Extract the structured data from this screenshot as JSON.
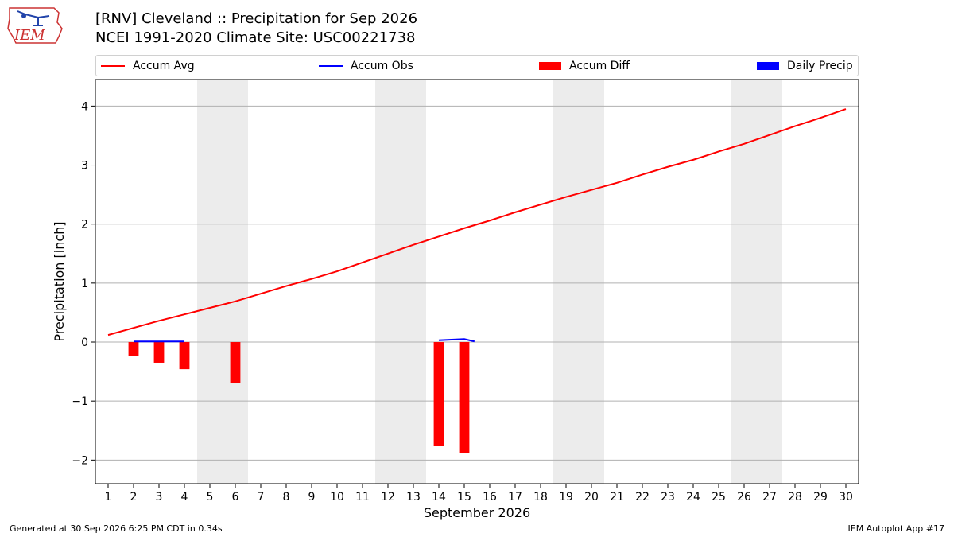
{
  "header": {
    "title_line1": "[RNV] Cleveland :: Precipitation for Sep 2026",
    "title_line2": "NCEI 1991-2020 Climate Site: USC00221738",
    "logo_text": "IEM"
  },
  "legend": {
    "placement": "top (above plot, single row)",
    "items": [
      {
        "label": "Accum Avg",
        "kind": "line",
        "color": "#ff0000"
      },
      {
        "label": "Accum Obs",
        "kind": "line",
        "color": "#0000ff"
      },
      {
        "label": "Accum Diff",
        "kind": "patch",
        "color": "#ff0000"
      },
      {
        "label": "Daily Precip",
        "kind": "patch",
        "color": "#0000ff"
      }
    ]
  },
  "footer": {
    "left": "Generated at 30 Sep 2026 6:25 PM CDT in 0.34s",
    "right": "IEM Autoplot App #17"
  },
  "colors": {
    "avg": "#ff0000",
    "obs": "#0000ff",
    "diff": "#ff0000",
    "weekend": "#ececec",
    "grid": "#b0b0b0"
  },
  "chart_data": {
    "type": "line",
    "title": "[RNV] Cleveland :: Precipitation for Sep 2026",
    "subtitle": "NCEI 1991-2020 Climate Site: USC00221738",
    "xlabel": "September 2026",
    "ylabel": "Precipitation [inch]",
    "xlim": [
      0.5,
      30.5
    ],
    "ylim": [
      -2.4,
      4.45
    ],
    "grid": "horizontal",
    "x": [
      1,
      2,
      3,
      4,
      5,
      6,
      7,
      8,
      9,
      10,
      11,
      12,
      13,
      14,
      15,
      16,
      17,
      18,
      19,
      20,
      21,
      22,
      23,
      24,
      25,
      26,
      27,
      28,
      29,
      30
    ],
    "yticks": [
      -2,
      -1,
      0,
      1,
      2,
      3,
      4
    ],
    "ytick_labels": [
      "−2",
      "−1",
      "0",
      "1",
      "2",
      "3",
      "4"
    ],
    "weekend_days": [
      [
        5,
        6
      ],
      [
        12,
        13
      ],
      [
        19,
        20
      ],
      [
        26,
        27
      ]
    ],
    "series": [
      {
        "name": "Accum Avg",
        "type": "line",
        "color": "#ff0000",
        "values": [
          0.12,
          0.24,
          0.36,
          0.47,
          0.58,
          0.69,
          0.82,
          0.95,
          1.07,
          1.2,
          1.35,
          1.5,
          1.65,
          1.79,
          1.93,
          2.06,
          2.2,
          2.33,
          2.46,
          2.58,
          2.7,
          2.84,
          2.97,
          3.09,
          3.23,
          3.36,
          3.51,
          3.66,
          3.8,
          3.95
        ]
      },
      {
        "name": "Accum Obs",
        "type": "line",
        "color": "#0000ff",
        "x": [
          2,
          3,
          4,
          14,
          15,
          15.4
        ],
        "values": [
          0.01,
          0.01,
          0.01,
          0.03,
          0.05,
          0.01
        ]
      },
      {
        "name": "Accum Diff",
        "type": "bar",
        "color": "#ff0000",
        "x": [
          2,
          3,
          4,
          6,
          14,
          15
        ],
        "values": [
          -0.23,
          -0.35,
          -0.46,
          -0.69,
          -1.76,
          -1.88
        ]
      }
    ]
  }
}
